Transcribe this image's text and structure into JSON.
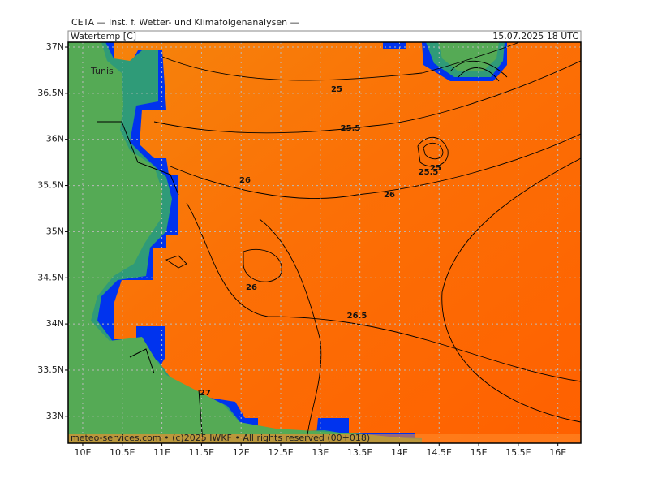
{
  "header": {
    "title": "CETA — Inst. f. Wetter- und Klimafolgenanalysen —",
    "parameter": "Watertemp [C]",
    "valid_time": "15.07.2025 18 UTC"
  },
  "map": {
    "lon_lim": [
      9.816,
      16.29
    ],
    "lat_lim": [
      32.708,
      37.053
    ],
    "lon_ticks": [
      {
        "value": 10,
        "label": "10E"
      },
      {
        "value": 10.5,
        "label": "10.5E"
      },
      {
        "value": 11,
        "label": "11E"
      },
      {
        "value": 11.5,
        "label": "11.5E"
      },
      {
        "value": 12,
        "label": "12E"
      },
      {
        "value": 12.5,
        "label": "12.5E"
      },
      {
        "value": 13,
        "label": "13E"
      },
      {
        "value": 13.5,
        "label": "13.5E"
      },
      {
        "value": 14,
        "label": "14E"
      },
      {
        "value": 14.5,
        "label": "14.5E"
      },
      {
        "value": 15,
        "label": "15E"
      },
      {
        "value": 15.5,
        "label": "15.5E"
      },
      {
        "value": 16,
        "label": "16E"
      }
    ],
    "lat_ticks": [
      {
        "value": 37,
        "label": "37N"
      },
      {
        "value": 36.5,
        "label": "36.5N"
      },
      {
        "value": 36,
        "label": "36N"
      },
      {
        "value": 35.5,
        "label": "35.5N"
      },
      {
        "value": 35,
        "label": "35N"
      },
      {
        "value": 34.5,
        "label": "34.5N"
      },
      {
        "value": 34,
        "label": "34N"
      },
      {
        "value": 33.5,
        "label": "33.5N"
      },
      {
        "value": 33,
        "label": "33N"
      }
    ],
    "grid": true,
    "city": "Tunis",
    "contour_labels": [
      25,
      25.5,
      26,
      26,
      26,
      26.5,
      27,
      25.5,
      25
    ],
    "credit": "meteo-services.com • (c)2025 IWKF • All rights reserved (00+018)"
  }
}
